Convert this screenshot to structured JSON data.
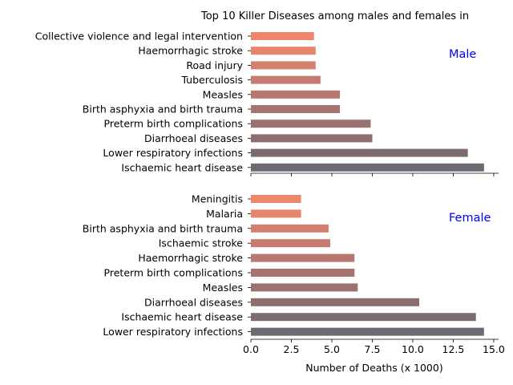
{
  "chart_data": {
    "type": "bar",
    "orientation": "horizontal",
    "title": "Top 10 Killer Diseases among males and females in",
    "xlabel": "Number of Deaths (x 1000)",
    "xlim": [
      0,
      15.3
    ],
    "xticks": [
      "0.0",
      "2.5",
      "5.0",
      "7.5",
      "10.0",
      "12.5",
      "15.0"
    ],
    "xtick_values": [
      0,
      2.5,
      5,
      7.5,
      10,
      12.5,
      15
    ],
    "grid": false,
    "panels": [
      {
        "label": "Male",
        "categories": [
          "Collective violence and legal intervention",
          "Haemorrhagic stroke",
          "Road injury",
          "Tuberculosis",
          "Measles",
          "Birth asphyxia and birth trauma",
          "Preterm birth complications",
          "Diarrhoeal diseases",
          "Lower respiratory infections",
          "Ischaemic heart disease"
        ],
        "values": [
          3.9,
          4.0,
          4.0,
          4.3,
          5.5,
          5.5,
          7.4,
          7.5,
          13.4,
          14.4
        ]
      },
      {
        "label": "Female",
        "categories": [
          "Meningitis",
          "Malaria",
          "Birth asphyxia and birth trauma",
          "Ischaemic stroke",
          "Haemorrhagic stroke",
          "Preterm birth complications",
          "Measles",
          "Diarrhoeal diseases",
          "Ischaemic heart disease",
          "Lower respiratory infections"
        ],
        "values": [
          3.1,
          3.1,
          4.8,
          4.9,
          6.4,
          6.4,
          6.6,
          10.4,
          13.9,
          14.4
        ]
      }
    ],
    "colors": [
      "#f0876a",
      "#e4856c",
      "#d48070",
      "#c67a70",
      "#b87872",
      "#a87472",
      "#9a7272",
      "#8c6e6f",
      "#7c6c72",
      "#6c6a72"
    ]
  }
}
